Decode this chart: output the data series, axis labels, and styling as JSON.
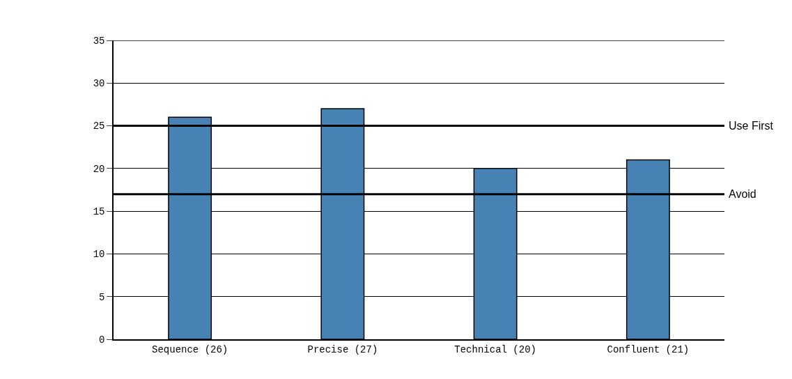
{
  "chart_data": {
    "type": "bar",
    "categories": [
      "Sequence (26)",
      "Precise (27)",
      "Technical (20)",
      "Confluent (21)"
    ],
    "values": [
      26,
      27,
      20,
      21
    ],
    "color": "#4682b4",
    "ylim": [
      0,
      35
    ],
    "yticks": [
      0,
      5,
      10,
      15,
      20,
      25,
      30,
      35
    ],
    "grid": "y",
    "ref_lines": [
      {
        "axis": "y",
        "value": 25,
        "label": "Use First",
        "color": "#000000"
      },
      {
        "axis": "y",
        "value": 17,
        "label": "Avoid",
        "color": "#000000"
      }
    ]
  }
}
